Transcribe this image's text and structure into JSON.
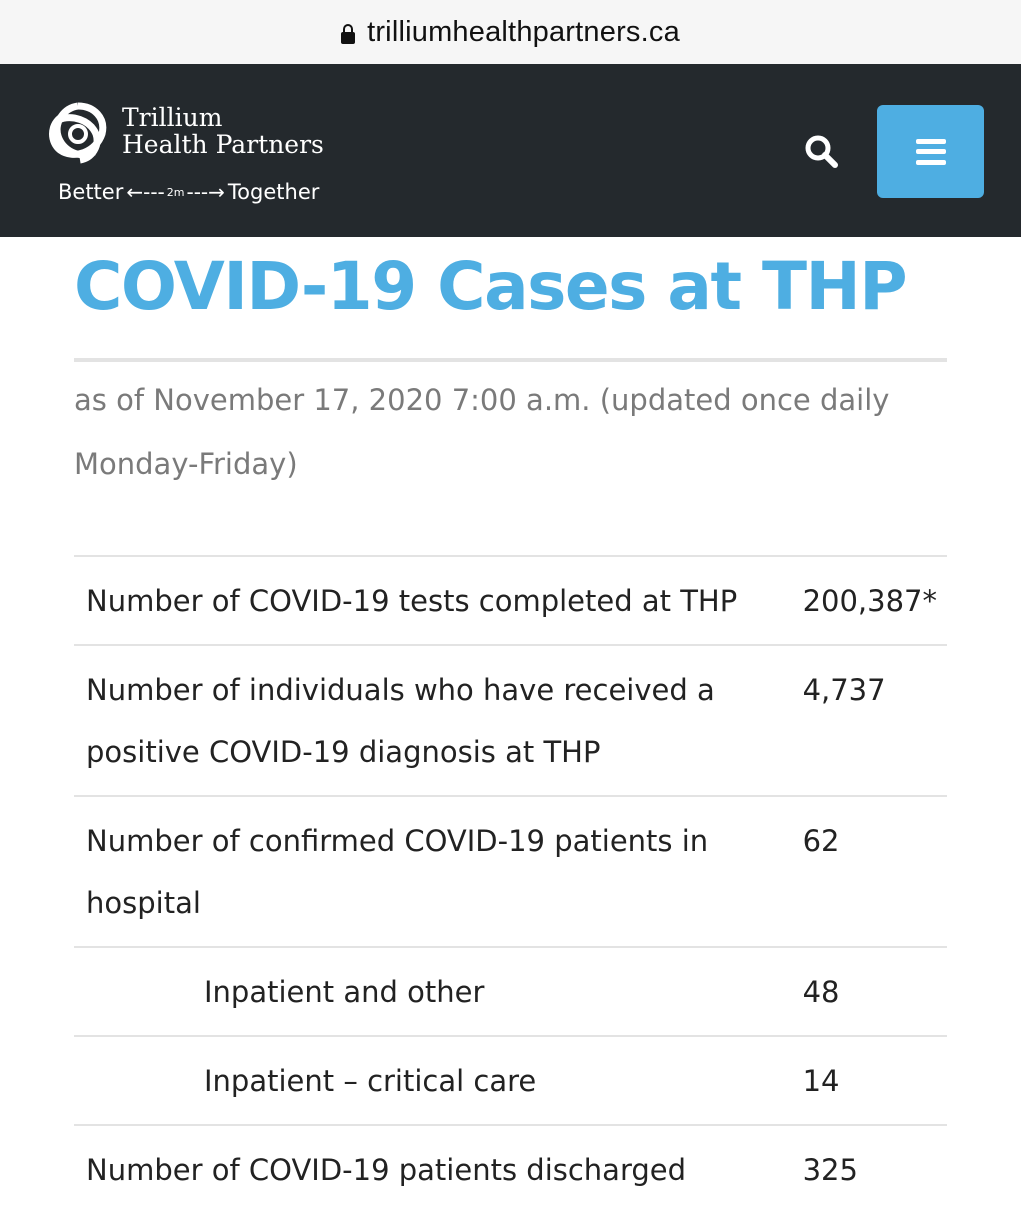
{
  "browser": {
    "url": "trilliumhealthpartners.ca"
  },
  "header": {
    "logo": {
      "name_line1": "Trillium",
      "name_line2": "Health Partners",
      "tagline_left": "Better",
      "tagline_distance": "2m",
      "tagline_right": "Together"
    },
    "icons": {
      "search": "search-icon",
      "menu": "hamburger-menu-icon",
      "logo": "trillium-logo-icon"
    },
    "colors": {
      "header_bg": "#24292d",
      "accent": "#4eaee2"
    }
  },
  "main": {
    "title": "COVID-19 Cases at THP",
    "update_note": "as of November 17, 2020 7:00 a.m. (updated once daily Monday-Friday)",
    "rows": [
      {
        "label": "Number of COVID-19 tests completed at THP",
        "value": "200,387*"
      },
      {
        "label": "Number of individuals who have received a positive COVID-19 diagnosis at THP",
        "value": "4,737"
      },
      {
        "label": "Number of confirmed COVID-19 patients in hospital",
        "value": "62"
      },
      {
        "label": "Inpatient and other",
        "value": "48"
      },
      {
        "label": "Inpatient – critical care",
        "value": "14"
      },
      {
        "label": "Number of COVID-19 patients discharged",
        "value": "325"
      }
    ]
  }
}
